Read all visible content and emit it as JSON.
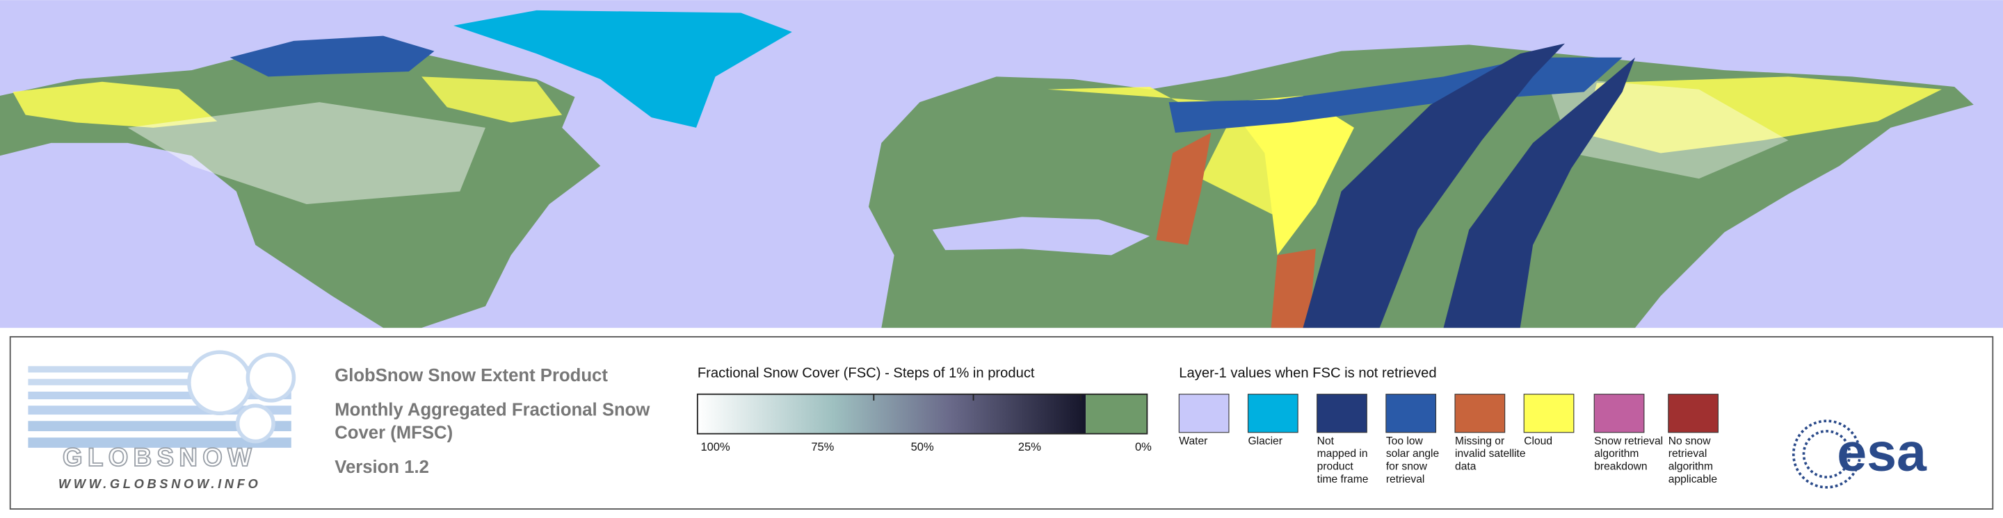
{
  "logo": {
    "name": "GLOBSNOW",
    "url": "WWW.GLOBSNOW.INFO"
  },
  "product": {
    "title": "GlobSnow Snow Extent Product",
    "subtitle": [
      "Monthly Aggregated Fractional Snow",
      "Cover (MFSC)"
    ],
    "version": "Version 1.2"
  },
  "fsc_legend": {
    "title": "Fractional Snow Cover (FSC) - Steps of 1% in product",
    "tick_labels": [
      "100%",
      "75%",
      "50%",
      "25%",
      "0%"
    ]
  },
  "layer1": {
    "title": "Layer-1 values when FSC is not retrieved",
    "items": [
      {
        "label": [
          "Water"
        ],
        "color": "#c8c8fa"
      },
      {
        "label": [
          "Glacier"
        ],
        "color": "#00b0e0"
      },
      {
        "label": [
          "Not",
          "mapped in",
          "product",
          "time frame"
        ],
        "color": "#233a7a"
      },
      {
        "label": [
          "Too low",
          "solar angle",
          "for snow",
          "retrieval"
        ],
        "color": "#2a5aa8"
      },
      {
        "label": [
          "Missing or",
          "invalid satellite",
          "data"
        ],
        "color": "#c8643c"
      },
      {
        "label": [
          "Cloud"
        ],
        "color": "#ffff55"
      },
      {
        "label": [
          "Snow retrieval",
          "algorithm",
          "breakdown"
        ],
        "color": "#c060a0"
      },
      {
        "label": [
          "No snow",
          "retrieval",
          "algorithm",
          "applicable"
        ],
        "color": "#a03030"
      }
    ]
  },
  "esa": {
    "name": "esa"
  }
}
